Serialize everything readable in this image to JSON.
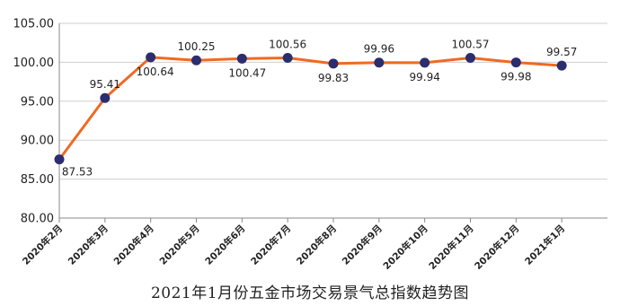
{
  "chart_data": {
    "type": "line",
    "title": "2021年1月份五金市场交易景气总指数趋势图",
    "categories": [
      "2020年2月",
      "2020年3月",
      "2020年4月",
      "2020年5月",
      "2020年6月",
      "2020年7月",
      "2020年8月",
      "2020年9月",
      "2020年10月",
      "2020年11月",
      "2020年12月",
      "2021年1月"
    ],
    "series": [
      {
        "values": [
          87.53,
          95.41,
          100.64,
          100.25,
          100.47,
          100.56,
          99.83,
          99.96,
          99.94,
          100.57,
          99.98,
          99.57
        ],
        "labels": [
          "87.53",
          "95.41",
          "100.64",
          "100.25",
          "100.47",
          "100.56",
          "99.83",
          "99.96",
          "99.94",
          "100.57",
          "99.98",
          "99.57"
        ]
      }
    ],
    "yticks": [
      "80.00",
      "85.00",
      "90.00",
      "95.00",
      "100.00",
      "105.00"
    ],
    "ylim": [
      80,
      105
    ],
    "xlabel": "",
    "ylabel": "",
    "grid": "horizontal",
    "line_color": "#ef6a22",
    "marker_color": "#2b2d6e",
    "grid_color": "#cfcfcf"
  }
}
